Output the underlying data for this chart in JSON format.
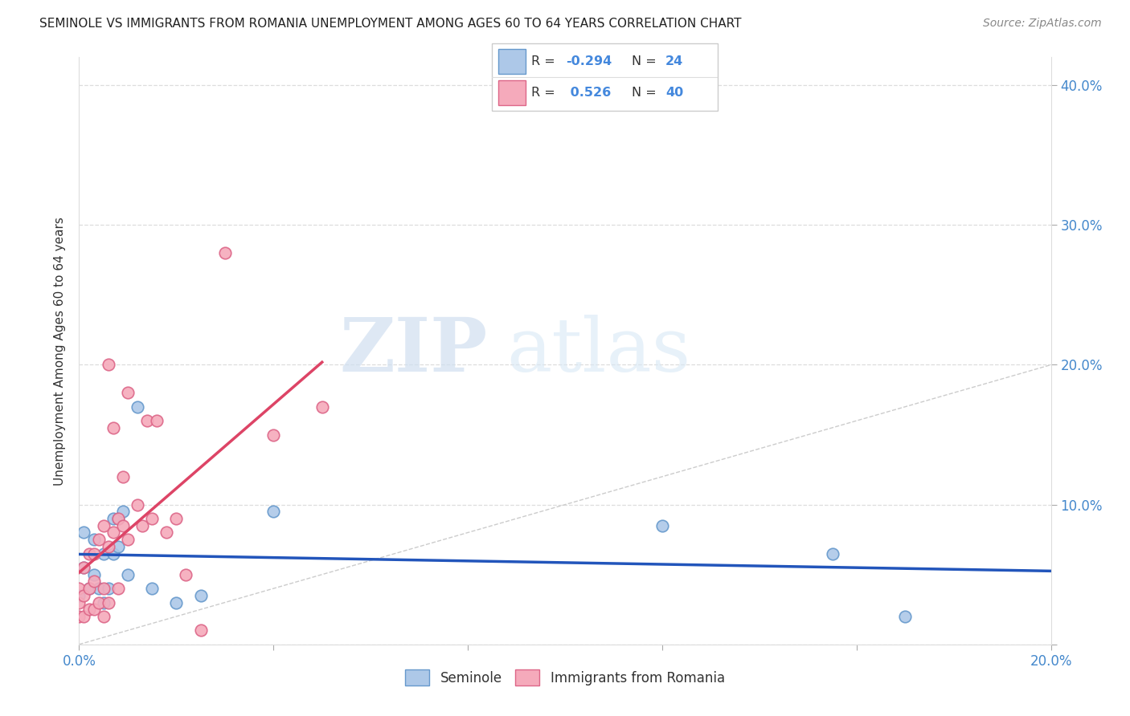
{
  "title": "SEMINOLE VS IMMIGRANTS FROM ROMANIA UNEMPLOYMENT AMONG AGES 60 TO 64 YEARS CORRELATION CHART",
  "source": "Source: ZipAtlas.com",
  "ylabel": "Unemployment Among Ages 60 to 64 years",
  "xlim": [
    0.0,
    0.2
  ],
  "ylim": [
    0.0,
    0.42
  ],
  "xticks": [
    0.0,
    0.04,
    0.08,
    0.12,
    0.16,
    0.2
  ],
  "xtick_labels": [
    "0.0%",
    "",
    "",
    "",
    "",
    "20.0%"
  ],
  "yticks": [
    0.0,
    0.1,
    0.2,
    0.3,
    0.4
  ],
  "ytick_labels": [
    "",
    "10.0%",
    "20.0%",
    "30.0%",
    "40.0%"
  ],
  "seminole_color": "#adc8e8",
  "romania_color": "#f5aabb",
  "seminole_edge_color": "#6699cc",
  "romania_edge_color": "#dd6688",
  "trend_seminole_color": "#2255bb",
  "trend_romania_color": "#dd4466",
  "diagonal_color": "#cccccc",
  "background_color": "#ffffff",
  "watermark_left": "ZIP",
  "watermark_right": "atlas",
  "legend_R_seminole": "-0.294",
  "legend_N_seminole": "24",
  "legend_R_romania": "0.526",
  "legend_N_romania": "40",
  "seminole_x": [
    0.0,
    0.001,
    0.001,
    0.002,
    0.003,
    0.003,
    0.004,
    0.005,
    0.005,
    0.006,
    0.007,
    0.007,
    0.008,
    0.008,
    0.009,
    0.01,
    0.012,
    0.015,
    0.02,
    0.025,
    0.04,
    0.12,
    0.155,
    0.17
  ],
  "seminole_y": [
    0.035,
    0.055,
    0.08,
    0.04,
    0.05,
    0.075,
    0.04,
    0.03,
    0.065,
    0.04,
    0.065,
    0.09,
    0.07,
    0.09,
    0.095,
    0.05,
    0.17,
    0.04,
    0.03,
    0.035,
    0.095,
    0.085,
    0.065,
    0.02
  ],
  "romania_x": [
    0.0,
    0.0,
    0.0,
    0.001,
    0.001,
    0.001,
    0.002,
    0.002,
    0.002,
    0.003,
    0.003,
    0.003,
    0.004,
    0.004,
    0.005,
    0.005,
    0.005,
    0.006,
    0.006,
    0.006,
    0.007,
    0.007,
    0.008,
    0.008,
    0.009,
    0.009,
    0.01,
    0.01,
    0.012,
    0.013,
    0.014,
    0.015,
    0.016,
    0.018,
    0.02,
    0.022,
    0.025,
    0.03,
    0.04,
    0.05
  ],
  "romania_y": [
    0.02,
    0.03,
    0.04,
    0.02,
    0.035,
    0.055,
    0.025,
    0.04,
    0.065,
    0.025,
    0.045,
    0.065,
    0.03,
    0.075,
    0.02,
    0.04,
    0.085,
    0.03,
    0.07,
    0.2,
    0.08,
    0.155,
    0.04,
    0.09,
    0.085,
    0.12,
    0.075,
    0.18,
    0.1,
    0.085,
    0.16,
    0.09,
    0.16,
    0.08,
    0.09,
    0.05,
    0.01,
    0.28,
    0.15,
    0.17
  ],
  "grid_color": "#dddddd",
  "tick_color": "#4488cc",
  "axis_label_color": "#333333",
  "title_fontsize": 11,
  "source_fontsize": 10,
  "tick_fontsize": 12,
  "ylabel_fontsize": 11
}
